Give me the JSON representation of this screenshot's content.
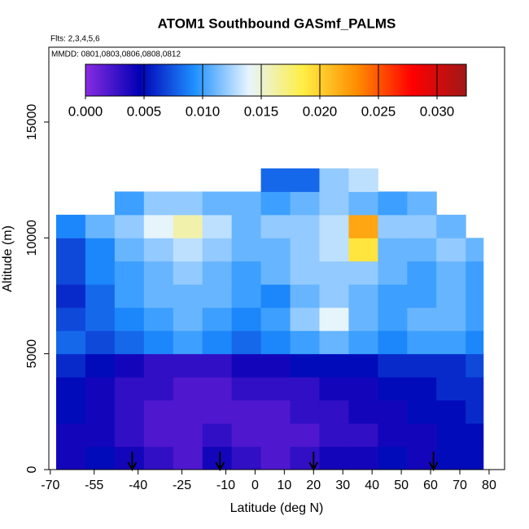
{
  "chart_data": {
    "type": "heatmap",
    "title": "ATOM1 Southbound GASmf_PALMS",
    "subtitle": "Flts: 2,3,4,5,6",
    "annotation": "MMDD: 0801,0803,0806,0808,0812",
    "x_label": "Latitude (deg N)",
    "y_label": "Altitude (m)",
    "xlim": [
      -70.5,
      85.3
    ],
    "ylim": [
      0,
      18230
    ],
    "xticks": [
      -70,
      -55,
      -40,
      -25,
      -10,
      0,
      10,
      20,
      30,
      40,
      50,
      60,
      70,
      80
    ],
    "yticks": [
      0,
      5000,
      10000,
      15000
    ],
    "x_bins": [
      -68,
      -58,
      -48,
      -38,
      -28,
      -18,
      -8,
      2,
      12,
      22,
      32,
      42,
      52,
      62,
      72,
      78
    ],
    "y_bins": [
      0,
      1000,
      2000,
      3000,
      4000,
      5000,
      6000,
      7000,
      8000,
      9000,
      10000,
      11000,
      12000,
      13000
    ],
    "values": [
      [
        0.004,
        0.005,
        0.004,
        0.003,
        0.002,
        0.004,
        0.003,
        0.002,
        0.003,
        0.004,
        0.004,
        0.005,
        0.004,
        0.005,
        0.005
      ],
      [
        0.004,
        0.004,
        0.003,
        0.002,
        0.002,
        0.003,
        0.002,
        0.002,
        0.002,
        0.003,
        0.003,
        0.004,
        0.004,
        0.005,
        0.005
      ],
      [
        0.005,
        0.004,
        0.003,
        0.002,
        0.002,
        0.002,
        0.002,
        0.002,
        0.003,
        0.003,
        0.004,
        0.004,
        0.005,
        0.005,
        0.006
      ],
      [
        0.005,
        0.004,
        0.003,
        0.003,
        0.002,
        0.002,
        0.003,
        0.003,
        0.003,
        0.004,
        0.004,
        0.005,
        0.005,
        0.006,
        0.006
      ],
      [
        0.006,
        0.005,
        0.004,
        0.003,
        0.003,
        0.003,
        0.004,
        0.004,
        0.005,
        0.005,
        0.005,
        0.006,
        0.006,
        0.006,
        0.007
      ],
      [
        0.008,
        0.007,
        0.008,
        0.009,
        0.01,
        0.009,
        0.008,
        0.009,
        0.01,
        0.011,
        0.01,
        0.009,
        0.01,
        0.01,
        0.009
      ],
      [
        0.007,
        0.008,
        0.009,
        0.01,
        0.011,
        0.01,
        0.009,
        0.01,
        0.012,
        0.014,
        0.011,
        0.01,
        0.011,
        0.011,
        0.01
      ],
      [
        0.006,
        0.008,
        0.01,
        0.011,
        0.011,
        0.011,
        0.01,
        0.009,
        0.011,
        0.012,
        0.011,
        0.01,
        0.01,
        0.011,
        0.01
      ],
      [
        0.007,
        0.009,
        0.01,
        0.011,
        0.012,
        0.011,
        0.01,
        0.011,
        0.012,
        0.012,
        0.012,
        0.011,
        0.01,
        0.011,
        0.01
      ],
      [
        0.007,
        0.009,
        0.011,
        0.012,
        0.013,
        0.012,
        0.011,
        0.011,
        0.012,
        0.013,
        0.019,
        0.011,
        0.011,
        0.012,
        0.011
      ],
      [
        0.009,
        0.011,
        0.012,
        0.014,
        0.016,
        0.013,
        0.011,
        0.012,
        0.012,
        0.013,
        0.022,
        0.012,
        0.012,
        0.011,
        null
      ],
      [
        null,
        null,
        0.01,
        0.012,
        0.012,
        0.011,
        0.011,
        0.01,
        0.011,
        0.012,
        0.011,
        0.01,
        0.011,
        null,
        null
      ],
      [
        null,
        null,
        null,
        null,
        null,
        null,
        null,
        0.008,
        0.008,
        0.012,
        0.013,
        null,
        null,
        null,
        null
      ]
    ],
    "markers": [
      -42,
      -12,
      20,
      61
    ],
    "colorbar_lim": [
      0,
      0.0325
    ],
    "colorbar_ticks": [
      {
        "value": 0,
        "label": "0.000"
      },
      {
        "value": 0.005,
        "label": "0.005"
      },
      {
        "value": 0.01,
        "label": "0.010"
      },
      {
        "value": 0.015,
        "label": "0.015"
      },
      {
        "value": 0.02,
        "label": "0.020"
      },
      {
        "value": 0.025,
        "label": "0.025"
      },
      {
        "value": 0.03,
        "label": "0.030"
      }
    ],
    "colorscale": [
      "#8a2be2",
      "#0000b4",
      "#1e90ff",
      "#e6f4ff",
      "#ffee44",
      "#ff8c00",
      "#ff0000",
      "#a01818"
    ]
  }
}
